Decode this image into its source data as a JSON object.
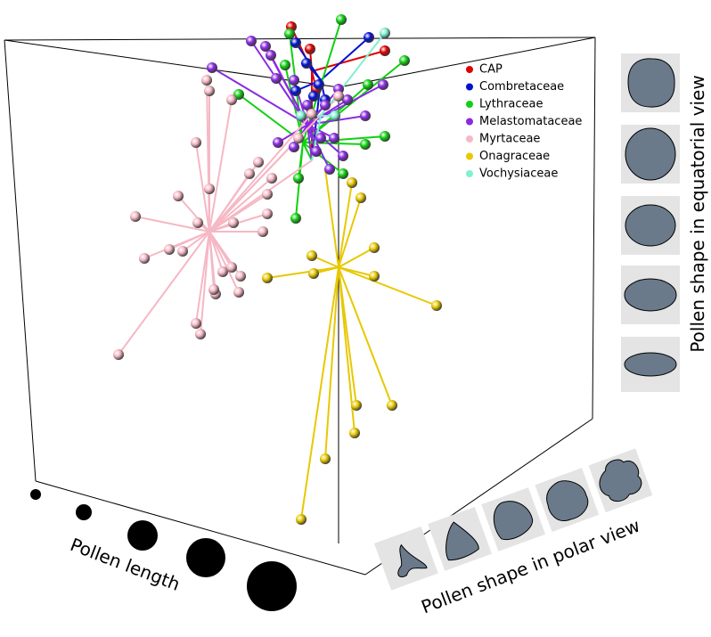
{
  "legend": {
    "items": [
      {
        "label": "CAP",
        "color": "#e00000"
      },
      {
        "label": "Combretaceae",
        "color": "#0010d0"
      },
      {
        "label": "Lythraceae",
        "color": "#10d010"
      },
      {
        "label": "Melastomataceae",
        "color": "#8a2be2"
      },
      {
        "label": "Myrtaceae",
        "color": "#f5b8c4"
      },
      {
        "label": "Onagraceae",
        "color": "#e8c800"
      },
      {
        "label": "Vochysiaceae",
        "color": "#80f0d0"
      }
    ]
  },
  "equatorial_label": "Pollen shape in equatorial view",
  "polar_label": "Pollen shape in polar view",
  "length_label": "Pollen length"
}
